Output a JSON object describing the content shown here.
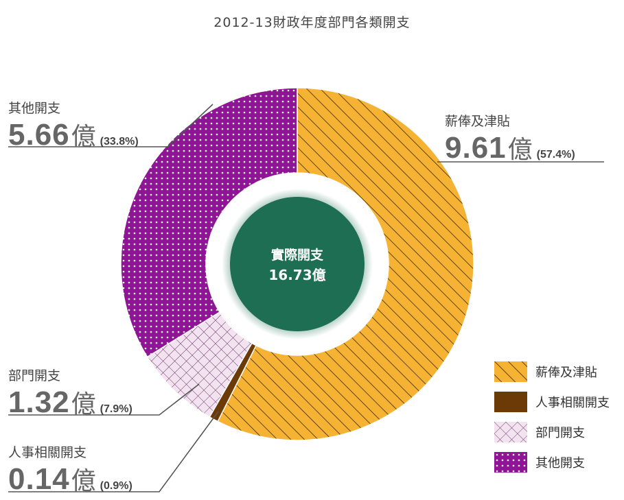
{
  "chart_data": {
    "type": "pie",
    "title": "2012-13財政年度部門各類開支",
    "center_label": "實際開支",
    "center_value": "16.73億",
    "unit": "億",
    "slices": [
      {
        "label": "薪俸及津貼",
        "value": 9.61,
        "value_text": "9.61",
        "percent": 57.4,
        "percent_text": "(57.4%)",
        "color": "#f5b233",
        "pattern": "diagonal-lines"
      },
      {
        "label": "人事相關開支",
        "value": 0.14,
        "value_text": "0.14",
        "percent": 0.9,
        "percent_text": "(0.9%)",
        "color": "#6b3a06",
        "pattern": "solid"
      },
      {
        "label": "部門開支",
        "value": 1.32,
        "value_text": "1.32",
        "percent": 7.9,
        "percent_text": "(7.9%)",
        "color": "#f3e2ef",
        "pattern": "crosshatch"
      },
      {
        "label": "其他開支",
        "value": 5.66,
        "value_text": "5.66",
        "percent": 33.8,
        "percent_text": "(33.8%)",
        "color": "#8e1594",
        "pattern": "dots"
      }
    ],
    "legend_position": "bottom-right"
  },
  "colors": {
    "center_circle": "#1d6e52",
    "center_text": "#ffffff",
    "callout_line": "#555555"
  }
}
